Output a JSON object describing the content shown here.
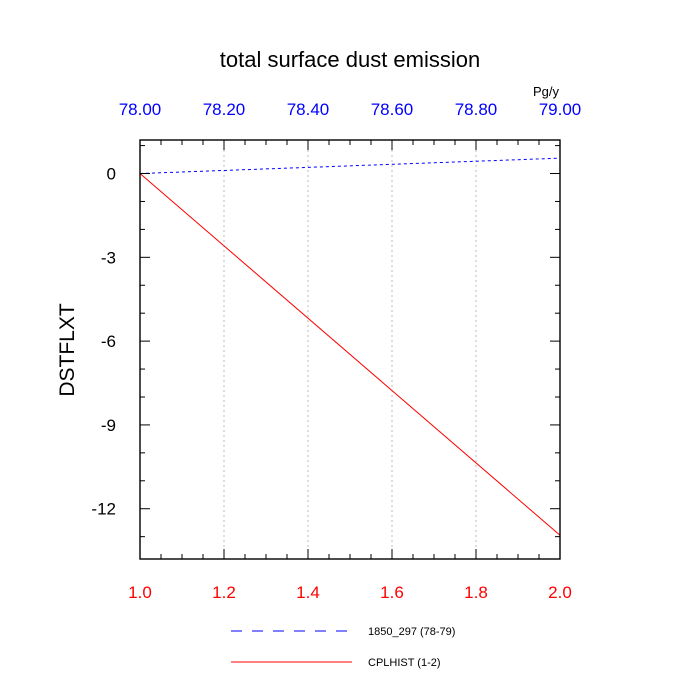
{
  "chart_data": {
    "type": "line",
    "title": "total surface dust emission",
    "ylabel": "DSTFLXT",
    "top_axis_unit": "Pg/y",
    "x_bottom": {
      "range": [
        1.0,
        2.0
      ],
      "ticks": [
        1.0,
        1.2,
        1.4,
        1.6,
        1.8,
        2.0
      ],
      "tick_labels": [
        "1.0",
        "1.2",
        "1.4",
        "1.6",
        "1.8",
        "2.0"
      ],
      "color": "#ff0000"
    },
    "x_top": {
      "range": [
        78.0,
        79.0
      ],
      "ticks": [
        78.0,
        78.2,
        78.4,
        78.6,
        78.8,
        79.0
      ],
      "tick_labels": [
        "78.00",
        "78.20",
        "78.40",
        "78.60",
        "78.80",
        "79.00"
      ],
      "color": "#0000ff"
    },
    "y": {
      "range": [
        -13.8,
        1.2
      ],
      "ticks": [
        0,
        -3,
        -6,
        -9,
        -12
      ],
      "tick_labels": [
        "0",
        "-3",
        "-6",
        "-9",
        "-12"
      ]
    },
    "grid": "vertical dotted at x ticks",
    "legend_position": "bottom-center",
    "series": [
      {
        "name": "1850_297 (78-79)",
        "axis": "top",
        "color": "#0000ff",
        "style": "dashed",
        "x": [
          78.0,
          79.0
        ],
        "y": [
          0.0,
          0.55
        ]
      },
      {
        "name": "CPLHIST (1-2)",
        "axis": "bottom",
        "color": "#ff0000",
        "style": "solid",
        "x": [
          1.0,
          2.0
        ],
        "y": [
          0.0,
          -12.95
        ]
      }
    ]
  }
}
